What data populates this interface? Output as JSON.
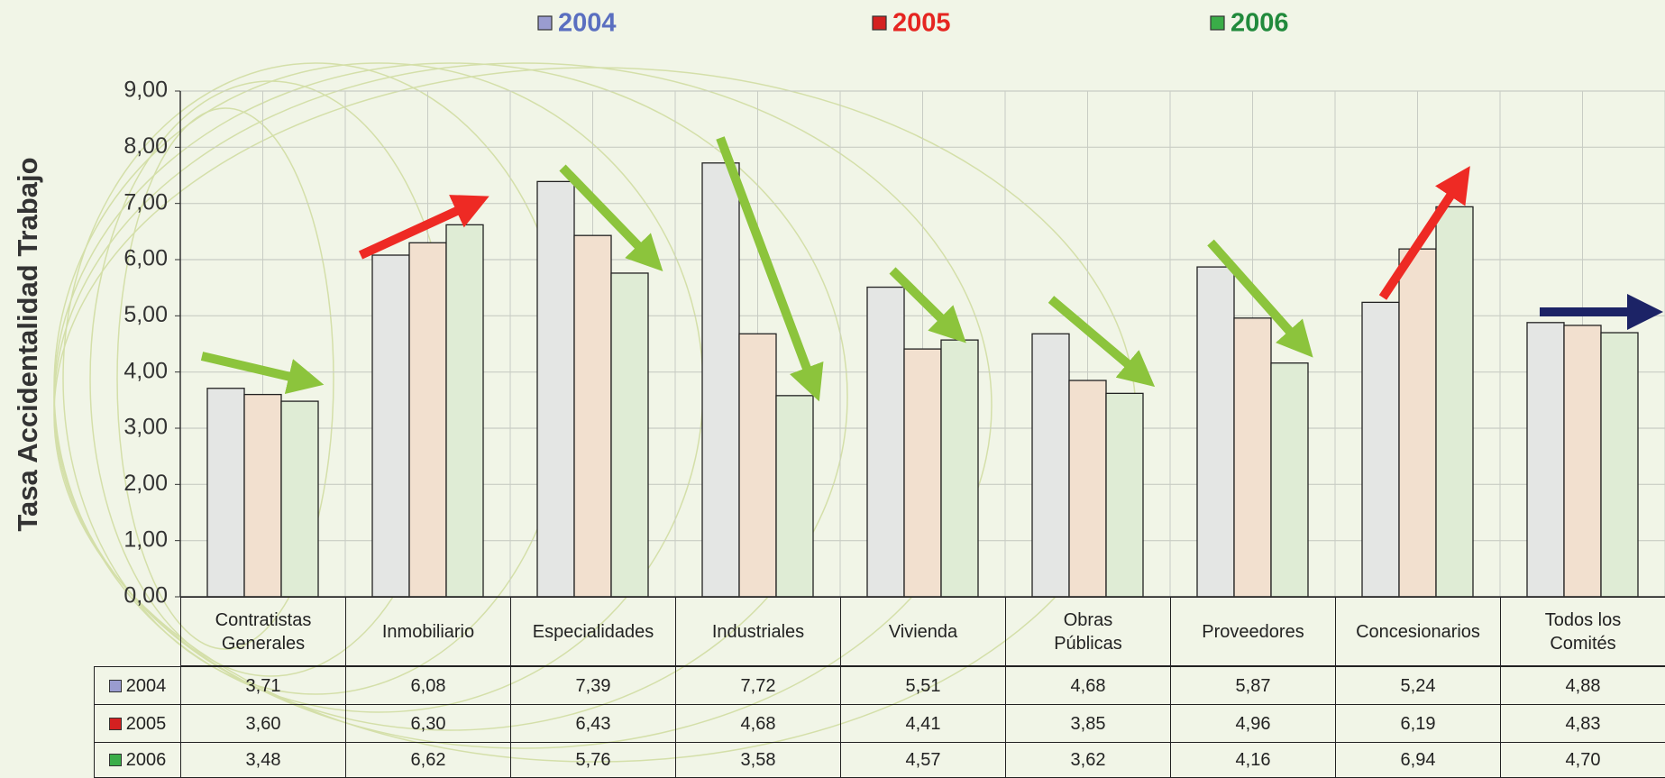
{
  "chart_data": {
    "type": "bar",
    "y_label": "Tasa Accidentalidad Trabajo",
    "categories": [
      "Contratistas\nGenerales",
      "Inmobiliario",
      "Especialidades",
      "Industriales",
      "Vivienda",
      "Obras\nPúblicas",
      "Proveedores",
      "Concesionarios",
      "Todos los\nComités"
    ],
    "series": [
      {
        "name": "2004",
        "color": "#5a6fc0",
        "square_color": "#9a9cd0",
        "bar_color": "#e4e6e4",
        "values": [
          3.71,
          6.08,
          7.39,
          7.72,
          5.51,
          4.68,
          5.87,
          5.24,
          4.88
        ],
        "value_labels": [
          "3,71",
          "6,08",
          "7,39",
          "7,72",
          "5,51",
          "4,68",
          "5,87",
          "5,24",
          "4,88"
        ]
      },
      {
        "name": "2005",
        "color": "#e52521",
        "square_color": "#d42020",
        "bar_color": "#f2e0cf",
        "values": [
          3.6,
          6.3,
          6.43,
          4.68,
          4.41,
          3.85,
          4.96,
          6.19,
          4.83
        ],
        "value_labels": [
          "3,60",
          "6,30",
          "6,43",
          "4,68",
          "4,41",
          "3,85",
          "4,96",
          "6,19",
          "4,83"
        ]
      },
      {
        "name": "2006",
        "color": "#218a3c",
        "square_color": "#3aad48",
        "bar_color": "#dfecd5",
        "values": [
          3.48,
          6.62,
          5.76,
          3.58,
          4.57,
          3.62,
          4.16,
          6.94,
          4.7
        ],
        "value_labels": [
          "3,48",
          "6,62",
          "5,76",
          "3,58",
          "4,57",
          "3,62",
          "4,16",
          "6,94",
          "4,70"
        ]
      }
    ],
    "ylim": [
      0,
      9
    ],
    "yticks": [
      {
        "value": 0,
        "label": "0,00"
      },
      {
        "value": 1,
        "label": "1,00"
      },
      {
        "value": 2,
        "label": "2,00"
      },
      {
        "value": 3,
        "label": "3,00"
      },
      {
        "value": 4,
        "label": "4,00"
      },
      {
        "value": 5,
        "label": "5,00"
      },
      {
        "value": 6,
        "label": "6,00"
      },
      {
        "value": 7,
        "label": "7,00"
      },
      {
        "value": 8,
        "label": "8,00"
      },
      {
        "value": 9,
        "label": "9,00"
      }
    ],
    "grid": true
  }
}
